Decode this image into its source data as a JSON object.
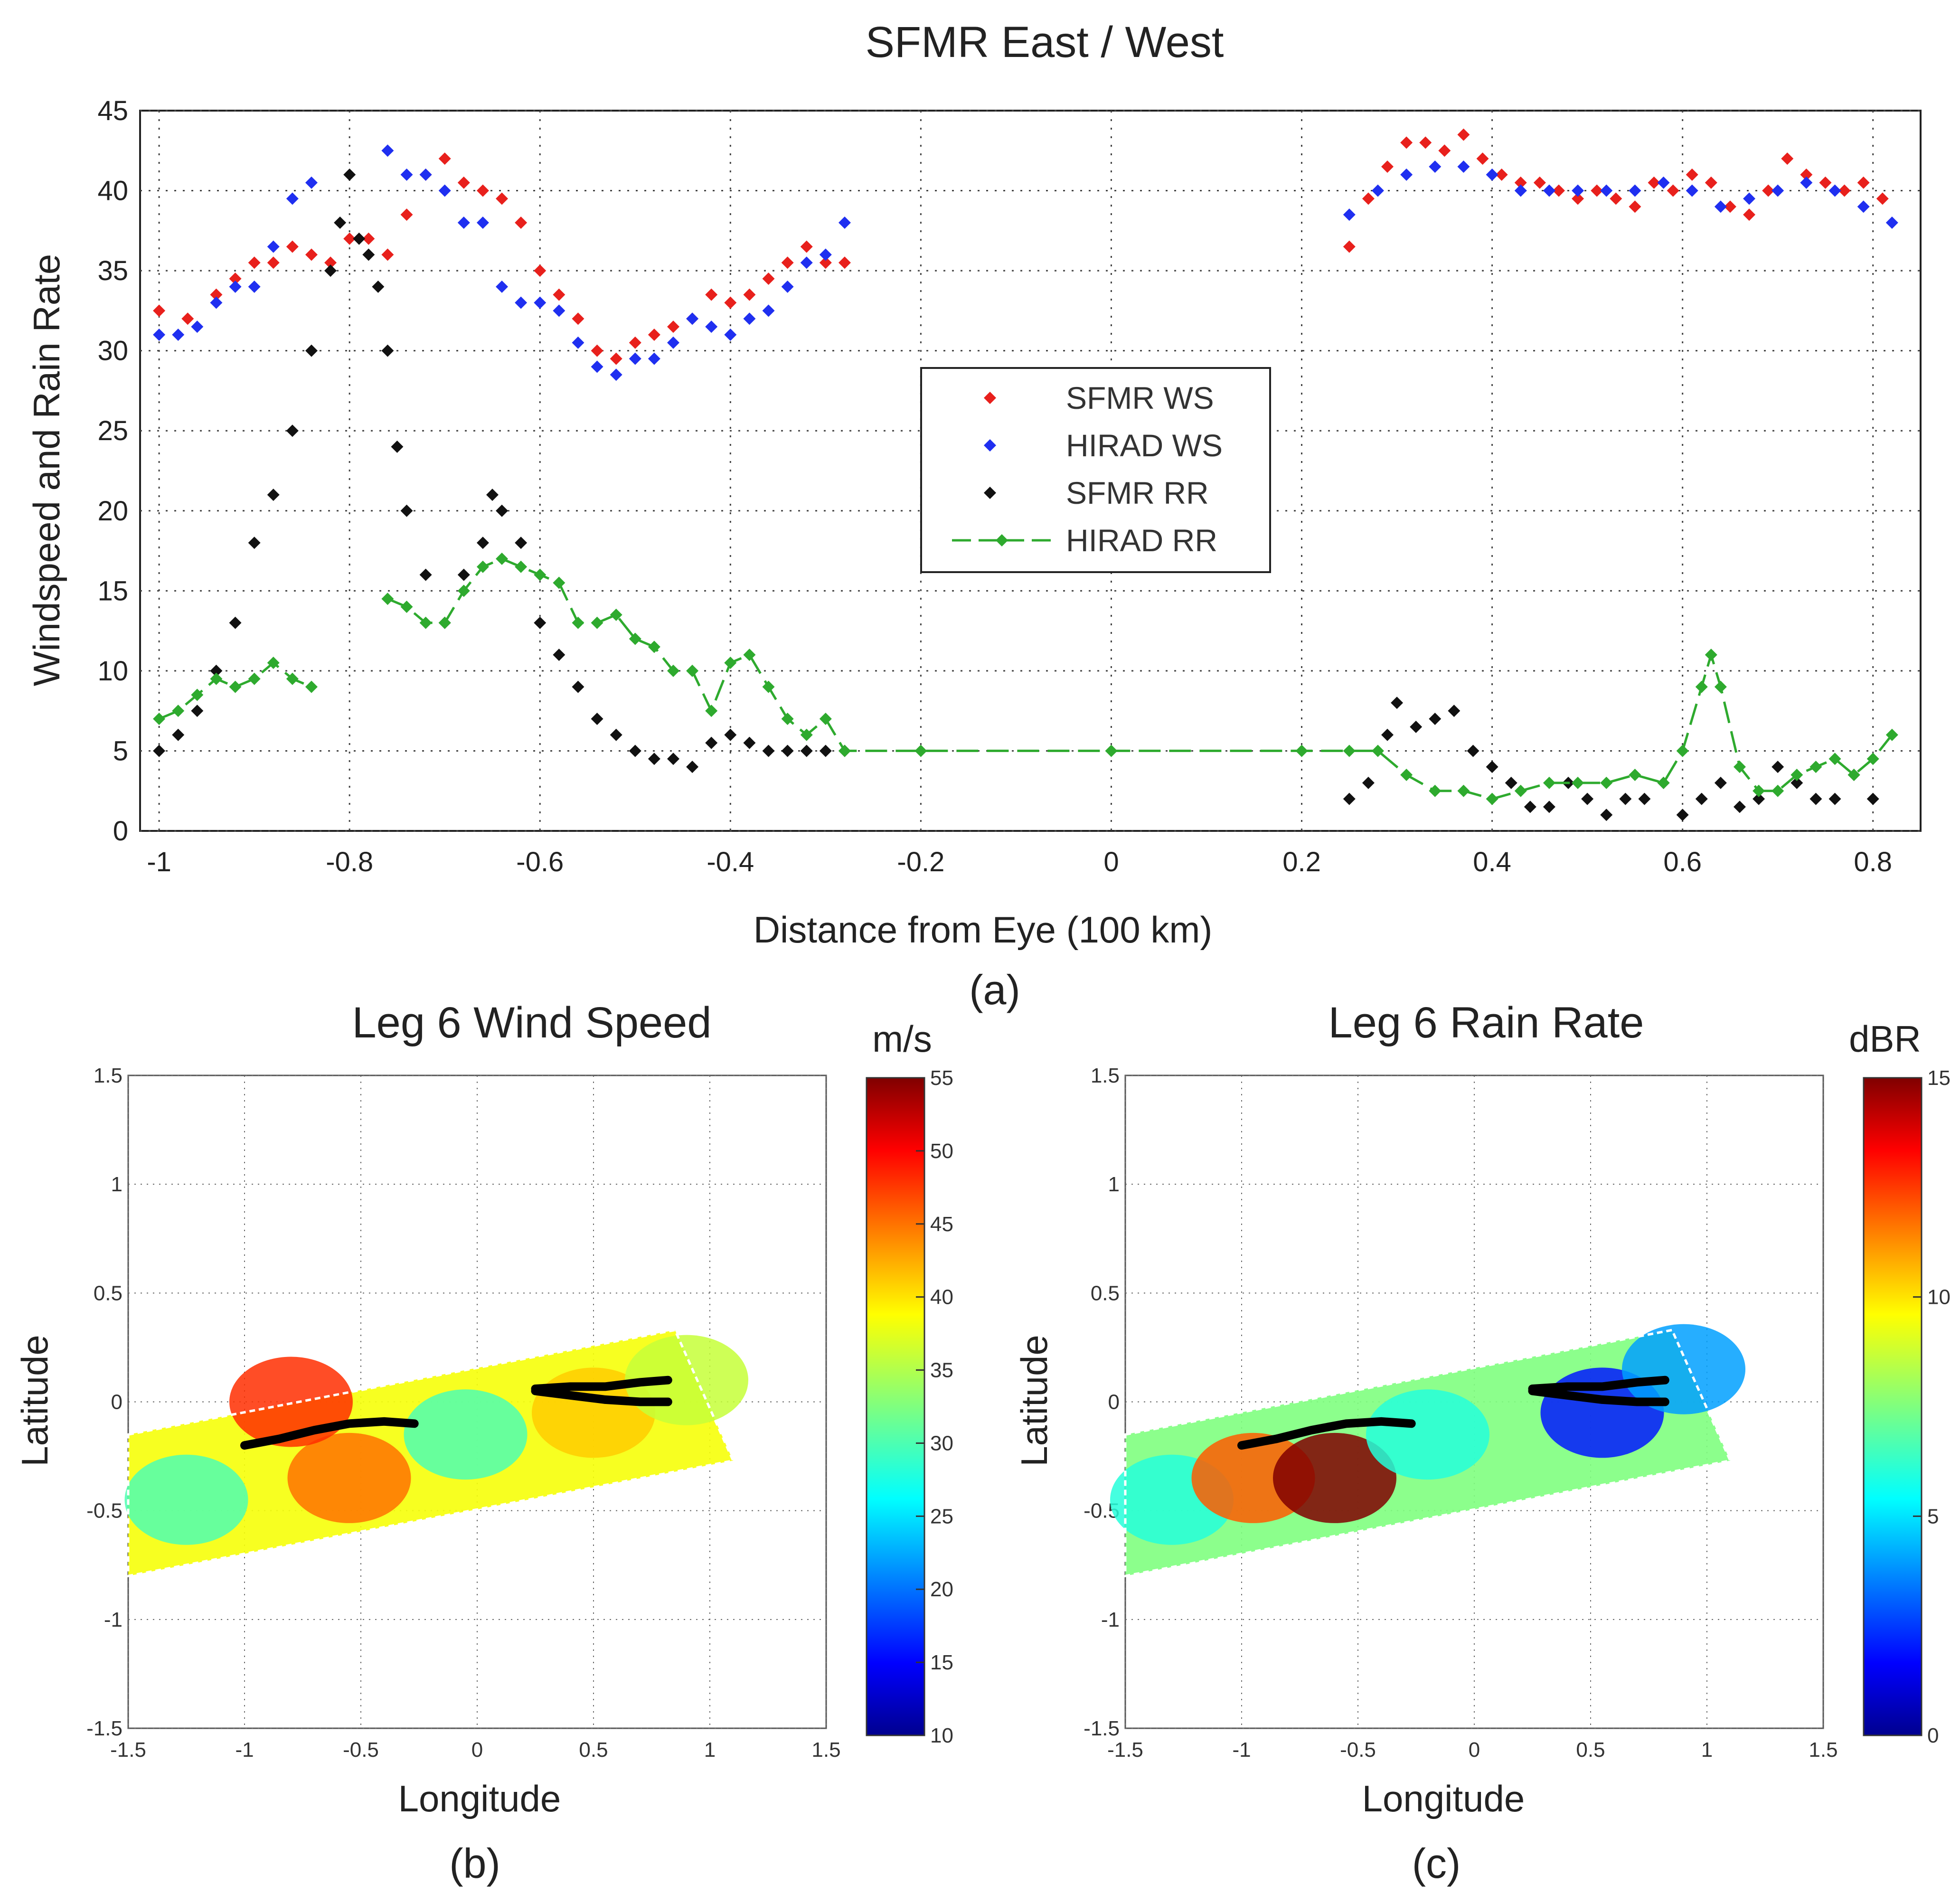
{
  "chart_data": [
    {
      "id": "a",
      "type": "scatter",
      "panel_label": "(a)",
      "title": "SFMR East / West",
      "xlabel": "Distance from Eye (100 km)",
      "ylabel": "Windspeed and Rain Rate",
      "xlim": [
        -1.02,
        0.85
      ],
      "ylim": [
        0,
        45
      ],
      "xticks": [
        -1,
        -0.8,
        -0.6,
        -0.4,
        -0.2,
        0,
        0.2,
        0.4,
        0.6,
        0.8
      ],
      "xtick_labels": [
        "-1",
        "-0.8",
        "-0.6",
        "-0.4",
        "-0.2",
        "0",
        "0.2",
        "0.4",
        "0.6",
        "0.8"
      ],
      "yticks": [
        0,
        5,
        10,
        15,
        20,
        25,
        30,
        35,
        40,
        45
      ],
      "ytick_labels": [
        "0",
        "5",
        "10",
        "15",
        "20",
        "25",
        "30",
        "35",
        "40",
        "45"
      ],
      "grid": true,
      "legend_position": "center-right",
      "series": [
        {
          "name": "SFMR WS",
          "color": "#e8201c",
          "style": "markers",
          "x": [
            -1.0,
            -0.97,
            -0.94,
            -0.92,
            -0.9,
            -0.88,
            -0.86,
            -0.84,
            -0.82,
            -0.8,
            -0.78,
            -0.76,
            -0.74,
            -0.72,
            -0.7,
            -0.68,
            -0.66,
            -0.64,
            -0.62,
            -0.6,
            -0.58,
            -0.56,
            -0.54,
            -0.52,
            -0.5,
            -0.48,
            -0.46,
            -0.44,
            -0.42,
            -0.4,
            -0.38,
            -0.36,
            -0.34,
            -0.32,
            -0.3,
            -0.28,
            0.25,
            0.27,
            0.29,
            0.31,
            0.33,
            0.35,
            0.37,
            0.39,
            0.41,
            0.43,
            0.45,
            0.47,
            0.49,
            0.51,
            0.53,
            0.55,
            0.57,
            0.59,
            0.61,
            0.63,
            0.65,
            0.67,
            0.69,
            0.71,
            0.73,
            0.75,
            0.77,
            0.79,
            0.81
          ],
          "y": [
            32.5,
            32,
            33.5,
            34.5,
            35.5,
            35.5,
            36.5,
            36,
            35.5,
            37,
            37,
            36,
            38.5,
            41,
            42,
            40.5,
            40,
            39.5,
            38,
            35,
            33.5,
            32,
            30,
            29.5,
            30.5,
            31,
            31.5,
            32,
            33.5,
            33,
            33.5,
            34.5,
            35.5,
            36.5,
            35.5,
            35.5,
            36.5,
            39.5,
            41.5,
            43,
            43,
            42.5,
            43.5,
            42,
            41,
            40.5,
            40.5,
            40,
            39.5,
            40,
            39.5,
            39,
            40.5,
            40,
            41,
            40.5,
            39,
            38.5,
            40,
            42,
            41,
            40.5,
            40,
            40.5,
            39.5
          ]
        },
        {
          "name": "HIRAD WS",
          "color": "#1f2ff0",
          "style": "markers",
          "x": [
            -1.0,
            -0.98,
            -0.96,
            -0.94,
            -0.92,
            -0.9,
            -0.88,
            -0.86,
            -0.84,
            -0.76,
            -0.74,
            -0.72,
            -0.7,
            -0.68,
            -0.66,
            -0.64,
            -0.62,
            -0.6,
            -0.58,
            -0.56,
            -0.54,
            -0.52,
            -0.5,
            -0.48,
            -0.46,
            -0.44,
            -0.42,
            -0.4,
            -0.38,
            -0.36,
            -0.34,
            -0.32,
            -0.3,
            -0.28,
            0.25,
            0.28,
            0.31,
            0.34,
            0.37,
            0.4,
            0.43,
            0.46,
            0.49,
            0.52,
            0.55,
            0.58,
            0.61,
            0.64,
            0.67,
            0.7,
            0.73,
            0.76,
            0.79,
            0.82
          ],
          "y": [
            31,
            31,
            31.5,
            33,
            34,
            34,
            36.5,
            39.5,
            40.5,
            42.5,
            41,
            41,
            40,
            38,
            38,
            34,
            33,
            33,
            32.5,
            30.5,
            29,
            28.5,
            29.5,
            29.5,
            30.5,
            32,
            31.5,
            31,
            32,
            32.5,
            34,
            35.5,
            36,
            38,
            38.5,
            40,
            41,
            41.5,
            41.5,
            41,
            40,
            40,
            40,
            40,
            40,
            40.5,
            40,
            39,
            39.5,
            40,
            40.5,
            40,
            39,
            38
          ]
        },
        {
          "name": "SFMR RR",
          "color": "#111111",
          "style": "markers",
          "x": [
            -1.0,
            -0.98,
            -0.96,
            -0.94,
            -0.92,
            -0.9,
            -0.88,
            -0.86,
            -0.84,
            -0.82,
            -0.81,
            -0.8,
            -0.79,
            -0.78,
            -0.77,
            -0.76,
            -0.75,
            -0.74,
            -0.72,
            -0.7,
            -0.68,
            -0.66,
            -0.65,
            -0.64,
            -0.62,
            -0.6,
            -0.58,
            -0.56,
            -0.54,
            -0.52,
            -0.5,
            -0.48,
            -0.46,
            -0.44,
            -0.42,
            -0.4,
            -0.38,
            -0.36,
            -0.34,
            -0.32,
            -0.3,
            -0.28,
            0.25,
            0.27,
            0.29,
            0.3,
            0.32,
            0.34,
            0.36,
            0.38,
            0.4,
            0.42,
            0.44,
            0.46,
            0.48,
            0.5,
            0.52,
            0.54,
            0.56,
            0.58,
            0.6,
            0.62,
            0.64,
            0.66,
            0.68,
            0.7,
            0.72,
            0.74,
            0.76,
            0.78,
            0.8
          ],
          "y": [
            5,
            6,
            7.5,
            10,
            13,
            18,
            21,
            25,
            30,
            35,
            38,
            41,
            37,
            36,
            34,
            30,
            24,
            20,
            16,
            13,
            16,
            18,
            21,
            20,
            18,
            13,
            11,
            9,
            7,
            6,
            5,
            4.5,
            4.5,
            4,
            5.5,
            6,
            5.5,
            5,
            5,
            5,
            5,
            5,
            2,
            3,
            6,
            8,
            6.5,
            7,
            7.5,
            5,
            4,
            3,
            1.5,
            1.5,
            3,
            2,
            1,
            2,
            2,
            3,
            1,
            2,
            3,
            1.5,
            2,
            4,
            3,
            2,
            2,
            3.5,
            2
          ]
        },
        {
          "name": "HIRAD RR",
          "color": "#2eaa2e",
          "style": "dashed-line-markers",
          "x": [
            -1.0,
            -0.98,
            -0.96,
            -0.94,
            -0.92,
            -0.9,
            -0.88,
            -0.86,
            -0.84,
            null,
            -0.76,
            -0.74,
            -0.72,
            -0.7,
            -0.68,
            -0.66,
            -0.64,
            -0.62,
            -0.6,
            -0.58,
            -0.56,
            -0.54,
            -0.52,
            -0.5,
            -0.48,
            -0.46,
            -0.44,
            -0.42,
            -0.4,
            -0.38,
            -0.36,
            -0.34,
            -0.32,
            -0.3,
            -0.28,
            -0.2,
            0.0,
            0.2,
            0.25,
            0.28,
            0.31,
            0.34,
            0.37,
            0.4,
            0.43,
            0.46,
            0.49,
            0.52,
            0.55,
            0.58,
            0.6,
            0.62,
            0.63,
            0.64,
            0.66,
            0.68,
            0.7,
            0.72,
            0.74,
            0.76,
            0.78,
            0.8,
            0.82
          ],
          "y": [
            7,
            7.5,
            8.5,
            9.5,
            9,
            9.5,
            10.5,
            9.5,
            9,
            null,
            14.5,
            14,
            13,
            13,
            15,
            16.5,
            17,
            16.5,
            16,
            15.5,
            13,
            13,
            13.5,
            12,
            11.5,
            10,
            10,
            7.5,
            10.5,
            11,
            9,
            7,
            6,
            7,
            5,
            5,
            5,
            5,
            5,
            5,
            3.5,
            2.5,
            2.5,
            2,
            2.5,
            3,
            3,
            3,
            3.5,
            3,
            5,
            9,
            11,
            9,
            4,
            2.5,
            2.5,
            3.5,
            4,
            4.5,
            3.5,
            4.5,
            6
          ]
        }
      ]
    },
    {
      "id": "b",
      "type": "heatmap",
      "panel_label": "(b)",
      "title": "Leg 6 Wind Speed",
      "xlabel": "Longitude",
      "ylabel": "Latitude",
      "xlim": [
        -1.5,
        1.5
      ],
      "ylim": [
        -1.5,
        1.5
      ],
      "ticks": [
        -1.5,
        -1,
        -0.5,
        0,
        0.5,
        1,
        1.5
      ],
      "tick_labels": [
        "-1.5",
        "-1",
        "-0.5",
        "0",
        "0.5",
        "1",
        "1.5"
      ],
      "grid": true,
      "colorbar": {
        "label": "m/s",
        "min": 10,
        "max": 55,
        "ticks": [
          10,
          15,
          20,
          25,
          30,
          35,
          40,
          45,
          50,
          55
        ],
        "tick_labels": [
          "10",
          "15",
          "20",
          "25",
          "30",
          "35",
          "40",
          "45",
          "50",
          "55"
        ]
      },
      "swath_corners": [
        [
          -1.5,
          -0.15
        ],
        [
          0.85,
          0.33
        ],
        [
          1.1,
          -0.27
        ],
        [
          -1.5,
          -0.8
        ]
      ],
      "regions": [
        {
          "lon": -1.25,
          "lat": -0.45,
          "value": 30
        },
        {
          "lon": -0.55,
          "lat": -0.35,
          "value": 45
        },
        {
          "lon": -0.8,
          "lat": 0.0,
          "value": 48
        },
        {
          "lon": -0.05,
          "lat": -0.15,
          "value": 30
        },
        {
          "lon": 0.5,
          "lat": -0.05,
          "value": 41
        },
        {
          "lon": 0.9,
          "lat": 0.1,
          "value": 36
        }
      ],
      "tracks": [
        {
          "name": "west-leg",
          "lon": [
            -1.0,
            -0.85,
            -0.7,
            -0.55,
            -0.4,
            -0.27
          ],
          "lat": [
            -0.2,
            -0.17,
            -0.13,
            -0.1,
            -0.09,
            -0.1
          ]
        },
        {
          "name": "east-leg-1",
          "lon": [
            0.25,
            0.4,
            0.55,
            0.7,
            0.82
          ],
          "lat": [
            0.06,
            0.07,
            0.07,
            0.09,
            0.1
          ]
        },
        {
          "name": "east-leg-2",
          "lon": [
            0.25,
            0.4,
            0.55,
            0.7,
            0.82
          ],
          "lat": [
            0.05,
            0.03,
            0.01,
            0.0,
            0.0
          ]
        }
      ]
    },
    {
      "id": "c",
      "type": "heatmap",
      "panel_label": "(c)",
      "title": "Leg 6 Rain Rate",
      "xlabel": "Longitude",
      "ylabel": "Latitude",
      "xlim": [
        -1.5,
        1.5
      ],
      "ylim": [
        -1.5,
        1.5
      ],
      "ticks": [
        -1.5,
        -1,
        -0.5,
        0,
        0.5,
        1,
        1.5
      ],
      "tick_labels": [
        "-1.5",
        "-1",
        "-0.5",
        "0",
        "0.5",
        "1",
        "1.5"
      ],
      "grid": true,
      "colorbar": {
        "label": "dBR",
        "min": 0,
        "max": 15,
        "ticks": [
          0,
          5,
          10,
          15
        ],
        "tick_labels": [
          "0",
          "5",
          "10",
          "15"
        ]
      },
      "swath_corners": [
        [
          -1.5,
          -0.15
        ],
        [
          0.85,
          0.33
        ],
        [
          1.1,
          -0.27
        ],
        [
          -1.5,
          -0.8
        ]
      ],
      "regions": [
        {
          "lon": -1.3,
          "lat": -0.45,
          "value": 6
        },
        {
          "lon": -0.95,
          "lat": -0.35,
          "value": 12
        },
        {
          "lon": -0.6,
          "lat": -0.35,
          "value": 15
        },
        {
          "lon": -0.2,
          "lat": -0.15,
          "value": 6
        },
        {
          "lon": 0.55,
          "lat": -0.05,
          "value": 2
        },
        {
          "lon": 0.9,
          "lat": 0.15,
          "value": 4
        }
      ],
      "tracks": [
        {
          "name": "west-leg",
          "lon": [
            -1.0,
            -0.85,
            -0.7,
            -0.55,
            -0.4,
            -0.27
          ],
          "lat": [
            -0.2,
            -0.17,
            -0.13,
            -0.1,
            -0.09,
            -0.1
          ]
        },
        {
          "name": "east-leg-1",
          "lon": [
            0.25,
            0.4,
            0.55,
            0.7,
            0.82
          ],
          "lat": [
            0.06,
            0.07,
            0.07,
            0.09,
            0.1
          ]
        },
        {
          "name": "east-leg-2",
          "lon": [
            0.25,
            0.4,
            0.55,
            0.7,
            0.82
          ],
          "lat": [
            0.05,
            0.03,
            0.01,
            0.0,
            0.0
          ]
        }
      ]
    }
  ]
}
